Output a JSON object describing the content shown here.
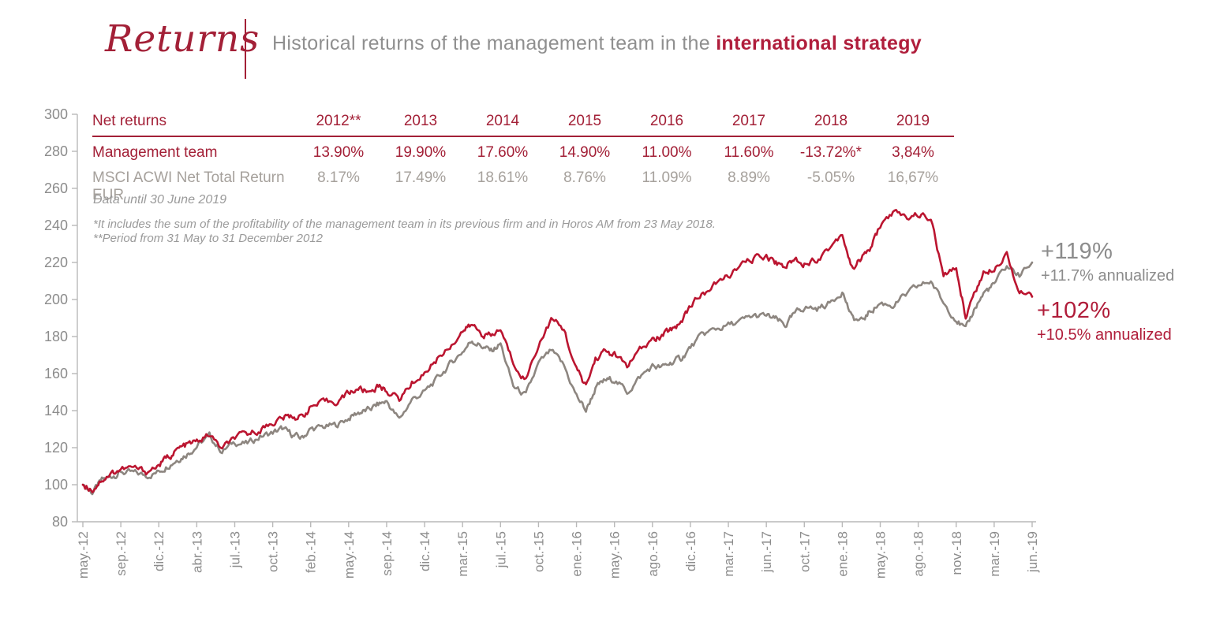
{
  "header": {
    "title": "Returns",
    "subtitle_plain": "Historical returns of the management team in the ",
    "subtitle_accent": "international strategy"
  },
  "table": {
    "row_header": "Net returns",
    "years": [
      "2012**",
      "2013",
      "2014",
      "2015",
      "2016",
      "2017",
      "2018",
      "2019"
    ],
    "rows": [
      {
        "label": "Management team",
        "values": [
          "13.90%",
          "19.90%",
          "17.60%",
          "14.90%",
          "11.00%",
          "11.60%",
          "-13.72%*",
          "3,84%"
        ]
      },
      {
        "label": "MSCI ACWI Net Total Return EUR",
        "values": [
          "8.17%",
          "17.49%",
          "18.61%",
          "8.76%",
          "11.09%",
          "8.89%",
          "-5.05%",
          "16,67%"
        ]
      }
    ]
  },
  "notes": {
    "data_until": "Data until 30 June 2019",
    "footnote1": "*It includes the sum of the profitability  of the management  team in its previous firm and in Horos AM from 23 May 2018.",
    "footnote2": "**Period from 31 May to 31 December 2012"
  },
  "annotations": [
    {
      "value": "+119%",
      "sub": "+11.7% annualized",
      "series": "MSCI ACWI Net Total Return EUR"
    },
    {
      "value": "+102%",
      "sub": "+10.5% annualized",
      "series": "Management team"
    }
  ],
  "colors": {
    "brand_red": "#a32037",
    "line_red": "#bb1530",
    "line_gray": "#8d8680",
    "text_gray": "#8f8f8f",
    "axis_gray": "#b9b9b9",
    "tick_label_gray": "#8c8c8c",
    "annotation_red": "#b01d3a",
    "annotation_gray": "#8c8c8c"
  },
  "chart_data": {
    "type": "line",
    "title": "",
    "xlabel": "",
    "ylabel": "",
    "ylim": [
      80,
      300
    ],
    "y_ticks": [
      80,
      100,
      120,
      140,
      160,
      180,
      200,
      220,
      240,
      260,
      280,
      300
    ],
    "grid": false,
    "legend": "none",
    "x_unit": "months since May 2012 (index base 100 at 31 May 2012)",
    "x_tick_labels": [
      "may.-12",
      "sep.-12",
      "dic.-12",
      "abr.-13",
      "jul.-13",
      "oct.-13",
      "feb.-14",
      "may.-14",
      "sep.-14",
      "dic.-14",
      "mar.-15",
      "jul.-15",
      "oct.-15",
      "ene.-16",
      "may.-16",
      "ago.-16",
      "dic.-16",
      "mar.-17",
      "jun.-17",
      "oct.-17",
      "ene.-18",
      "may.-18",
      "ago.-18",
      "nov.-18",
      "mar.-19",
      "jun.-19"
    ],
    "x_tick_month_index": [
      0,
      4,
      7,
      11,
      14,
      17,
      21,
      24,
      28,
      31,
      34,
      38,
      41,
      44,
      48,
      51,
      55,
      58,
      61,
      65,
      68,
      72,
      75,
      78,
      82,
      85
    ],
    "series": [
      {
        "name": "MSCI ACWI Net Total Return EUR",
        "color_key": "line_gray",
        "final_return": "+119%",
        "annualized": "+11.7%",
        "monthly_values": [
          100,
          96,
          102,
          104.5,
          107,
          106,
          105,
          107,
          111,
          114,
          117,
          121,
          126,
          118,
          123,
          122,
          126,
          128,
          130,
          127,
          125,
          130,
          131,
          132,
          136,
          139,
          140,
          143,
          145,
          135,
          146,
          150,
          157,
          165,
          172,
          178,
          175,
          172,
          176,
          153,
          148,
          165,
          172,
          164,
          148,
          140,
          152,
          156,
          157,
          150,
          158,
          164,
          163,
          166,
          168,
          174,
          181,
          184,
          186,
          188,
          191,
          191,
          189,
          186,
          192,
          196,
          195,
          198,
          205,
          190,
          188,
          194,
          198,
          197,
          202,
          207,
          210,
          198,
          190,
          183,
          196,
          204,
          208,
          218,
          213,
          220
        ]
      },
      {
        "name": "Management team",
        "color_key": "line_red",
        "final_return": "+102%",
        "annualized": "+10.5%",
        "monthly_values": [
          100,
          97.5,
          103,
          106,
          108.5,
          109,
          107,
          110.5,
          115,
          119,
          121.5,
          123,
          127,
          119,
          125,
          127,
          130,
          133.5,
          136,
          137,
          136.5,
          142,
          144,
          145,
          149.5,
          152,
          150,
          153,
          151,
          146,
          155,
          160.5,
          168,
          175,
          183,
          186,
          182,
          180,
          184,
          166,
          157,
          176,
          189,
          184,
          162,
          153,
          168,
          172,
          170,
          164,
          172,
          178,
          180,
          184,
          188,
          197,
          203,
          208,
          213,
          218,
          222,
          224,
          220,
          218,
          222,
          220,
          222,
          228,
          236,
          217,
          222,
          228,
          240,
          247,
          244,
          246,
          244,
          212,
          217,
          191,
          205,
          215,
          218,
          225,
          204,
          201.5
        ]
      }
    ]
  }
}
